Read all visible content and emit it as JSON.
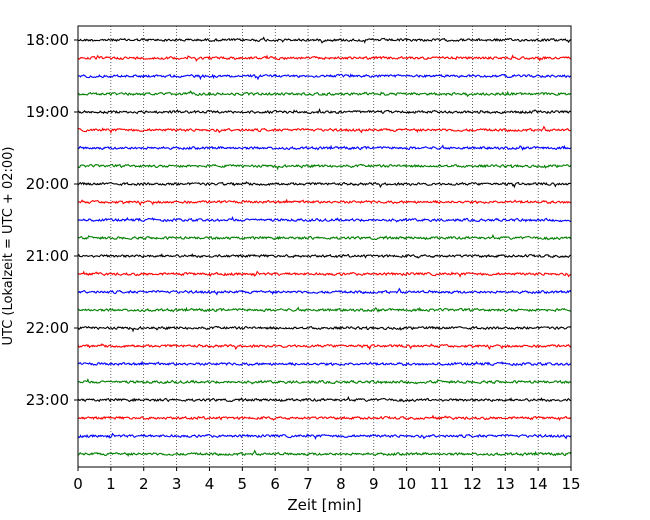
{
  "chart_data": {
    "type": "line",
    "title": "",
    "xlabel": "Zeit  [min]",
    "ylabel": "UTC (Lokalzeit = UTC + 02:00)",
    "xlim": [
      0,
      15
    ],
    "x_ticks": [
      "0",
      "1",
      "2",
      "3",
      "4",
      "5",
      "6",
      "7",
      "8",
      "9",
      "10",
      "11",
      "12",
      "13",
      "14",
      "15"
    ],
    "y_tick_labels": [
      "18:00",
      "19:00",
      "20:00",
      "21:00",
      "22:00",
      "23:00"
    ],
    "y_tick_rows": [
      0,
      4,
      8,
      12,
      16,
      20
    ],
    "grid": true,
    "row_minutes": 15,
    "start_time": "18:00",
    "row_count": 24,
    "series_colors": [
      "#000000",
      "#ff0000",
      "#0000ff",
      "#008000"
    ],
    "series_note": "Helicorder seismogram traces, colors cycle per 15-minute row"
  }
}
